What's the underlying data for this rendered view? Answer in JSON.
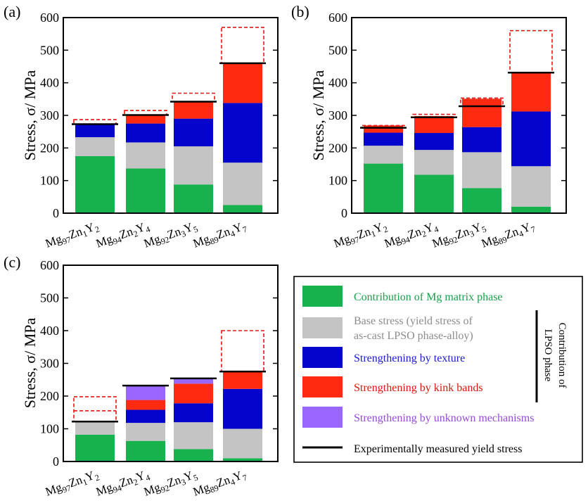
{
  "page_title": "",
  "common": {
    "ylabel": "Stress, σ/ MPa",
    "yticks": [
      "0",
      "100",
      "200",
      "300",
      "400",
      "500",
      "600"
    ],
    "categories": [
      {
        "base": "Mg",
        "s1": "97",
        "e2": "Zn",
        "s2": "1",
        "e3": "Y",
        "s3": "2"
      },
      {
        "base": "Mg",
        "s1": "94",
        "e2": "Zn",
        "s2": "2",
        "e3": "Y",
        "s3": "4"
      },
      {
        "base": "Mg",
        "s1": "92",
        "e2": "Zn",
        "s2": "3",
        "e3": "Y",
        "s3": "5"
      },
      {
        "base": "Mg",
        "s1": "89",
        "e2": "Zn",
        "s2": "4",
        "e3": "Y",
        "s3": "7"
      }
    ]
  },
  "legend": {
    "items": [
      {
        "label": "Contribution of Mg matrix phase",
        "color": "#17b14d",
        "text_color": "#17a24a"
      },
      {
        "label_line1": "Base stress  (yield stress of",
        "label_line2": "as-cast LPSO phase-alloy)",
        "color": "#c4c4c4",
        "text_color": "#8c8c8c"
      },
      {
        "label": "Strengthening by texture",
        "color": "#0404cc",
        "text_color": "#1a1ad0"
      },
      {
        "label": "Strengthening by kink bands",
        "color": "#ff2a10",
        "text_color": "#d61a0a"
      },
      {
        "label": "Strengthening by unknown mechanisms",
        "color": "#9966ff",
        "text_color": "#9a4ad6"
      },
      {
        "label": "Experimentally measured yield stress",
        "color": "#000000",
        "text_color": "#000000"
      }
    ],
    "bracket_line1": "Contribution of",
    "bracket_line2": "LPSO phase"
  },
  "chart_data": [
    {
      "panel_label": "(a)",
      "type": "bar",
      "stacked": true,
      "categories": [
        "Mg97Zn1Y2",
        "Mg94Zn2Y4",
        "Mg92Zn3Y5",
        "Mg89Zn4Y7"
      ],
      "ylabel": "Stress, σ/ MPa",
      "ylim": [
        0,
        600
      ],
      "series": [
        {
          "name": "Contribution of Mg matrix phase",
          "color": "#17b14d",
          "values": [
            175,
            137,
            88,
            25
          ]
        },
        {
          "name": "Base stress (yield stress of as-cast LPSO phase-alloy)",
          "color": "#c4c4c4",
          "values": [
            58,
            80,
            117,
            130
          ]
        },
        {
          "name": "Strengthening by texture",
          "color": "#0404cc",
          "values": [
            42,
            58,
            85,
            183
          ]
        },
        {
          "name": "Strengthening by kink bands",
          "color": "#ff2a10",
          "values": [
            0,
            27,
            53,
            123
          ]
        },
        {
          "name": "Strengthening by unknown mechanisms",
          "color": "#9966ff",
          "values": [
            0,
            0,
            0,
            0
          ]
        }
      ],
      "calculated_total": [
        287,
        315,
        368,
        570
      ],
      "measured_yield_stress": [
        273,
        301,
        342,
        460
      ]
    },
    {
      "panel_label": "(b)",
      "type": "bar",
      "stacked": true,
      "categories": [
        "Mg97Zn1Y2",
        "Mg94Zn2Y4",
        "Mg92Zn3Y5",
        "Mg89Zn4Y7"
      ],
      "ylabel": "Stress, σ/ MPa",
      "ylim": [
        0,
        600
      ],
      "series": [
        {
          "name": "Contribution of Mg matrix phase",
          "color": "#17b14d",
          "values": [
            152,
            118,
            77,
            20
          ]
        },
        {
          "name": "Base stress (yield stress of as-cast LPSO phase-alloy)",
          "color": "#c4c4c4",
          "values": [
            55,
            76,
            110,
            124
          ]
        },
        {
          "name": "Strengthening by texture",
          "color": "#0404cc",
          "values": [
            40,
            52,
            77,
            168
          ]
        },
        {
          "name": "Strengthening by kink bands",
          "color": "#ff2a10",
          "values": [
            22,
            52,
            87,
            118
          ]
        },
        {
          "name": "Strengthening by unknown mechanisms",
          "color": "#9966ff",
          "values": [
            0,
            0,
            0,
            0
          ]
        }
      ],
      "calculated_total": [
        269,
        303,
        353,
        560
      ],
      "measured_yield_stress": [
        262,
        294,
        328,
        431
      ]
    },
    {
      "panel_label": "(c)",
      "type": "bar",
      "stacked": true,
      "categories": [
        "Mg97Zn1Y2",
        "Mg94Zn2Y4",
        "Mg92Zn3Y5",
        "Mg89Zn4Y7"
      ],
      "ylabel": "Stress, σ/ MPa",
      "ylim": [
        0,
        600
      ],
      "series": [
        {
          "name": "Contribution of Mg matrix phase",
          "color": "#17b14d",
          "values": [
            82,
            63,
            38,
            10
          ]
        },
        {
          "name": "Base stress (yield stress of as-cast LPSO phase-alloy)",
          "color": "#c4c4c4",
          "values": [
            38,
            55,
            82,
            90
          ]
        },
        {
          "name": "Strengthening by texture",
          "color": "#0404cc",
          "values": [
            0,
            40,
            58,
            122
          ]
        },
        {
          "name": "Strengthening by kink bands",
          "color": "#ff2a10",
          "values": [
            0,
            30,
            60,
            53
          ]
        },
        {
          "name": "Strengthening by unknown mechanisms",
          "color": "#9966ff",
          "values": [
            0,
            43,
            18,
            0
          ]
        }
      ],
      "calculated_total": [
        198,
        232,
        254,
        400
      ],
      "calculated_total_secondary": [
        155,
        null,
        null,
        null
      ],
      "measured_yield_stress": [
        122,
        232,
        254,
        275
      ]
    }
  ]
}
